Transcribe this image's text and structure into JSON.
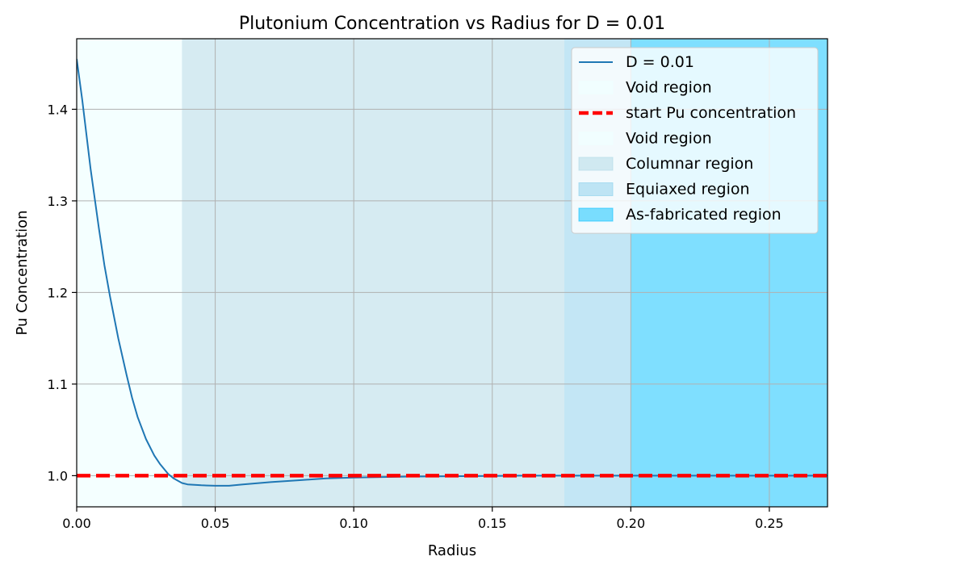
{
  "chart_data": {
    "type": "line",
    "title": "Plutonium Concentration vs Radius for D = 0.01",
    "xlabel": "Radius",
    "ylabel": "Pu Concentration",
    "xlim": [
      0.0,
      0.271
    ],
    "ylim": [
      0.966,
      1.477
    ],
    "xticks": [
      0.0,
      0.05,
      0.1,
      0.15,
      0.2,
      0.25
    ],
    "xtick_labels": [
      "0.00",
      "0.05",
      "0.10",
      "0.15",
      "0.20",
      "0.25"
    ],
    "yticks": [
      1.0,
      1.1,
      1.2,
      1.3,
      1.4
    ],
    "ytick_labels": [
      "1.0",
      "1.1",
      "1.2",
      "1.3",
      "1.4"
    ],
    "grid": true,
    "legend_position": "upper right",
    "regions": [
      {
        "name": "Void region",
        "x0": 0.0,
        "x1": 0.038,
        "color": "#f0ffff",
        "opacity": 0.7
      },
      {
        "name": "Void region",
        "x0": 0.0,
        "x1": 0.0,
        "color": "#f0ffff",
        "opacity": 0.7
      },
      {
        "name": "Columnar region",
        "x0": 0.038,
        "x1": 0.176,
        "color": "#add8e6",
        "opacity": 0.5
      },
      {
        "name": "Equiaxed region",
        "x0": 0.176,
        "x1": 0.2,
        "color": "#87ceeb",
        "opacity": 0.5
      },
      {
        "name": "As-fabricated region",
        "x0": 0.2,
        "x1": 0.271,
        "color": "#00bfff",
        "opacity": 0.5
      }
    ],
    "series": [
      {
        "name": "D = 0.01",
        "color": "#1f77b4",
        "x": [
          0.0,
          0.002,
          0.005,
          0.008,
          0.01,
          0.012,
          0.015,
          0.018,
          0.02,
          0.022,
          0.025,
          0.028,
          0.03,
          0.033,
          0.035,
          0.038,
          0.04,
          0.045,
          0.05,
          0.055,
          0.06,
          0.07,
          0.08,
          0.09,
          0.1,
          0.12,
          0.14,
          0.16,
          0.18,
          0.2,
          0.22,
          0.24,
          0.26,
          0.271
        ],
        "y": [
          1.455,
          1.41,
          1.335,
          1.27,
          1.23,
          1.196,
          1.15,
          1.11,
          1.085,
          1.064,
          1.04,
          1.022,
          1.013,
          1.002,
          0.997,
          0.992,
          0.9905,
          0.9895,
          0.989,
          0.989,
          0.9905,
          0.993,
          0.995,
          0.997,
          0.998,
          0.999,
          0.9995,
          1.0,
          1.0,
          1.0,
          1.0,
          1.0,
          1.0,
          1.0
        ]
      },
      {
        "name": "start Pu concentration",
        "color": "#ff0000",
        "style": "dashed",
        "x": [
          0.0,
          0.271
        ],
        "y": [
          1.0,
          1.0
        ]
      }
    ],
    "legend_entries": [
      {
        "label": "D = 0.01",
        "kind": "line",
        "color": "#1f77b4"
      },
      {
        "label": "Void region",
        "kind": "patch",
        "color": "#f0ffff",
        "opacity": 0.7
      },
      {
        "label": "start Pu concentration",
        "kind": "dash",
        "color": "#ff0000"
      },
      {
        "label": "Void region",
        "kind": "patch",
        "color": "#f0ffff",
        "opacity": 0.7
      },
      {
        "label": "Columnar region",
        "kind": "patch",
        "color": "#add8e6",
        "opacity": 0.5
      },
      {
        "label": "Equiaxed region",
        "kind": "patch",
        "color": "#87ceeb",
        "opacity": 0.5
      },
      {
        "label": "As-fabricated region",
        "kind": "patch",
        "color": "#00bfff",
        "opacity": 0.5
      }
    ]
  }
}
